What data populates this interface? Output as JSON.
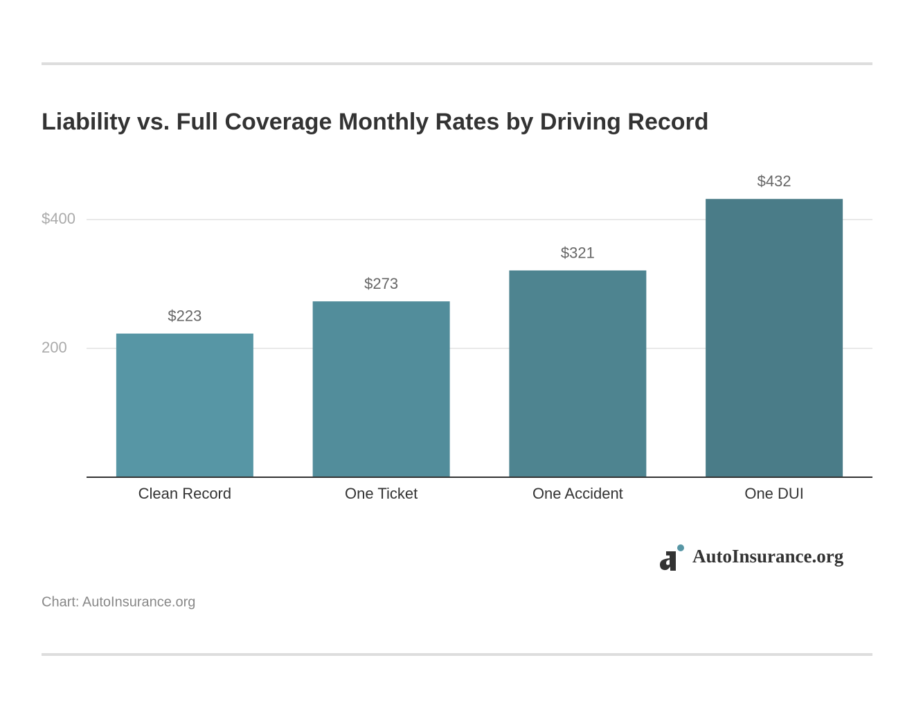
{
  "chart_data": {
    "type": "bar",
    "title": "Liability vs. Full Coverage Monthly Rates by Driving Record",
    "categories": [
      "Clean Record",
      "One Ticket",
      "One Accident",
      "One DUI"
    ],
    "values": [
      223,
      273,
      321,
      432
    ],
    "value_labels": [
      "$223",
      "$273",
      "$321",
      "$432"
    ],
    "colors": [
      "#5796a5",
      "#528d9b",
      "#4e8490",
      "#4a7c88"
    ],
    "ylim": [
      0,
      450
    ],
    "yticks": [
      200,
      {
        "value": 400,
        "label": "$400"
      }
    ],
    "grid": true,
    "source": "Chart: AutoInsurance.org",
    "logo_text": "AutoInsurance.org"
  }
}
